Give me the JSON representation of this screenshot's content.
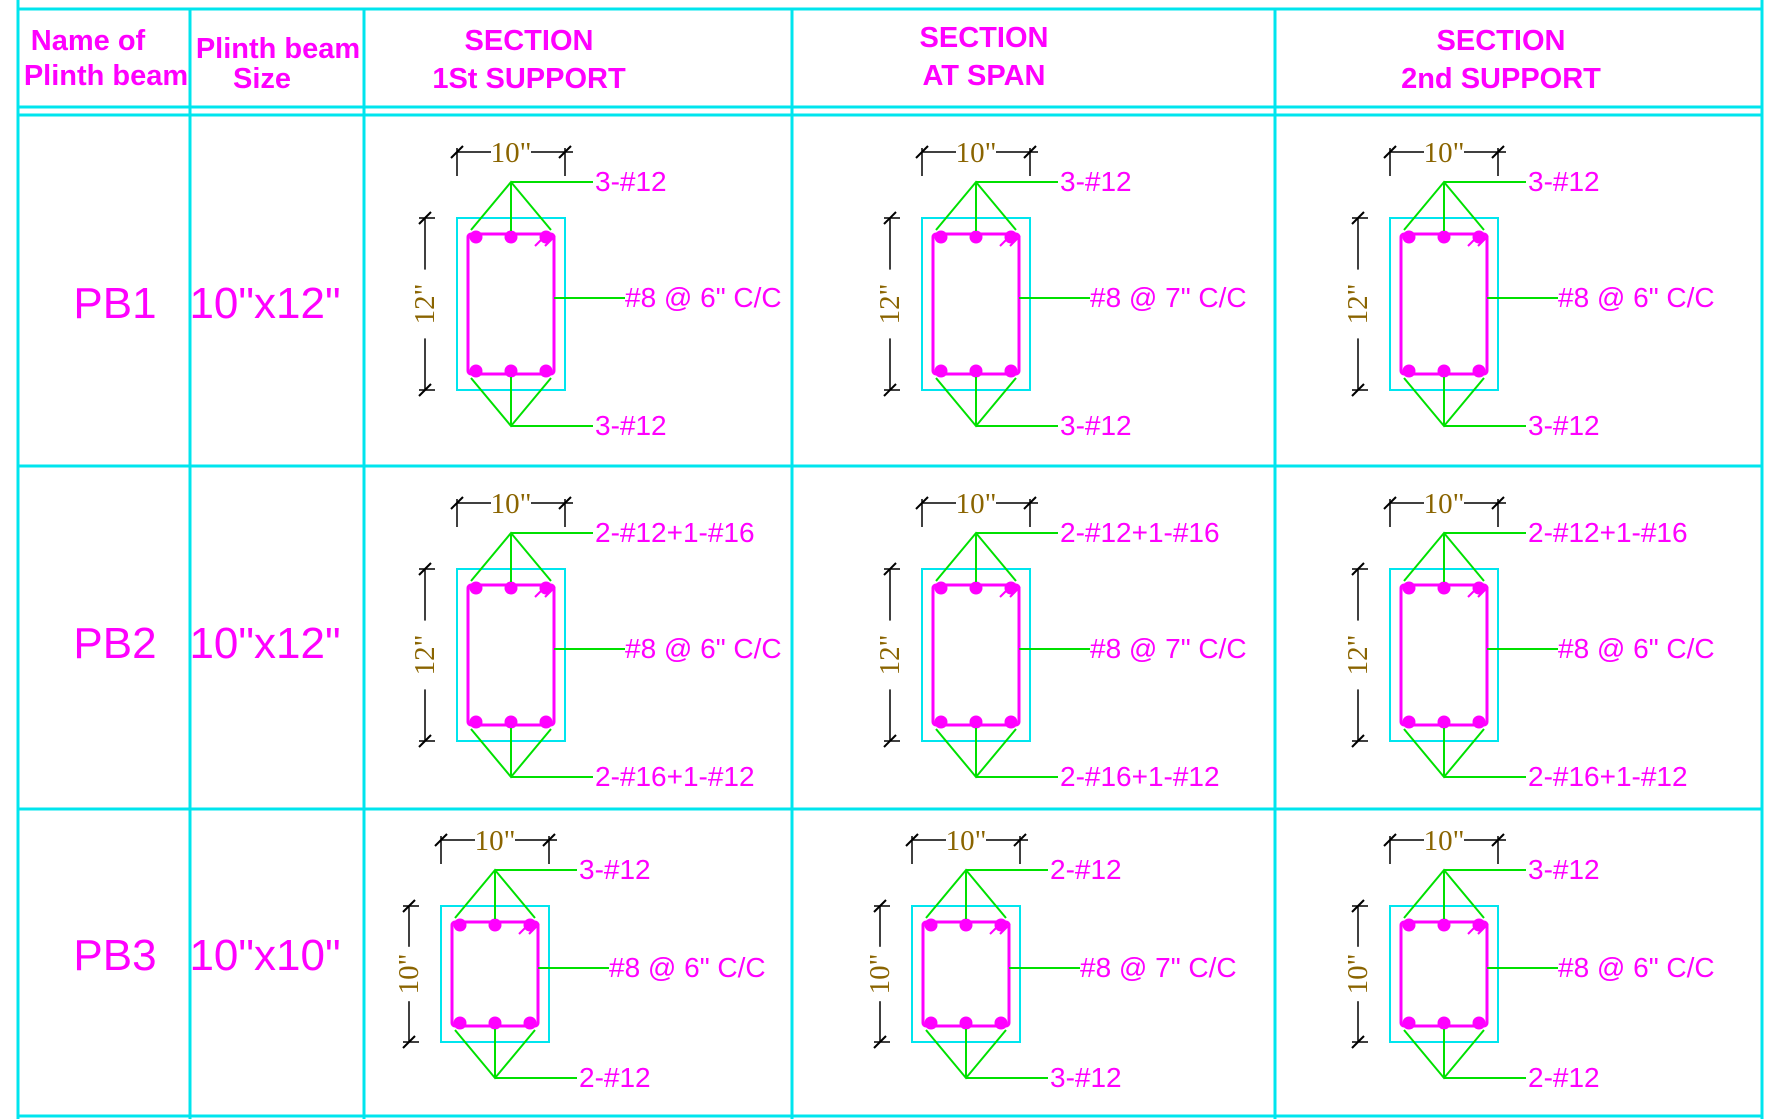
{
  "headers": {
    "name": [
      "Name of",
      "Plinth beam"
    ],
    "size": [
      "Plinth beam",
      "Size"
    ],
    "sec1": [
      "SECTION",
      "1St SUPPORT"
    ],
    "sec2": [
      "SECTION",
      "AT SPAN"
    ],
    "sec3": [
      "SECTION",
      "2nd SUPPORT"
    ]
  },
  "colors": {
    "grid": "#00e5ee",
    "bar": "#ff00ff",
    "leader": "#00e000",
    "dimension": "#8a6400",
    "dimension_line": "#000000"
  },
  "rows": [
    {
      "name": "PB1",
      "size": "10\"x12\"",
      "sections": [
        {
          "width": "10\"",
          "depth": "12\"",
          "top": "3-#12",
          "stirrup": "#8 @ 6\" C/C",
          "bottom": "3-#12"
        },
        {
          "width": "10\"",
          "depth": "12\"",
          "top": "3-#12",
          "stirrup": "#8 @ 7\" C/C",
          "bottom": "3-#12"
        },
        {
          "width": "10\"",
          "depth": "12\"",
          "top": "3-#12",
          "stirrup": "#8 @ 6\" C/C",
          "bottom": "3-#12"
        }
      ]
    },
    {
      "name": "PB2",
      "size": "10\"x12\"",
      "sections": [
        {
          "width": "10\"",
          "depth": "12\"",
          "top": "2-#12+1-#16",
          "stirrup": "#8 @ 6\" C/C",
          "bottom": "2-#16+1-#12"
        },
        {
          "width": "10\"",
          "depth": "12\"",
          "top": "2-#12+1-#16",
          "stirrup": "#8 @ 7\" C/C",
          "bottom": "2-#16+1-#12"
        },
        {
          "width": "10\"",
          "depth": "12\"",
          "top": "2-#12+1-#16",
          "stirrup": "#8 @ 6\" C/C",
          "bottom": "2-#16+1-#12"
        }
      ]
    },
    {
      "name": "PB3",
      "size": "10\"x10\"",
      "sections": [
        {
          "width": "10\"",
          "depth": "10\"",
          "top": "3-#12",
          "stirrup": "#8 @ 6\" C/C",
          "bottom": "2-#12"
        },
        {
          "width": "10\"",
          "depth": "10\"",
          "top": "2-#12",
          "stirrup": "#8 @ 7\" C/C",
          "bottom": "3-#12"
        },
        {
          "width": "10\"",
          "depth": "10\"",
          "top": "3-#12",
          "stirrup": "#8 @ 6\" C/C",
          "bottom": "2-#12"
        }
      ]
    }
  ]
}
